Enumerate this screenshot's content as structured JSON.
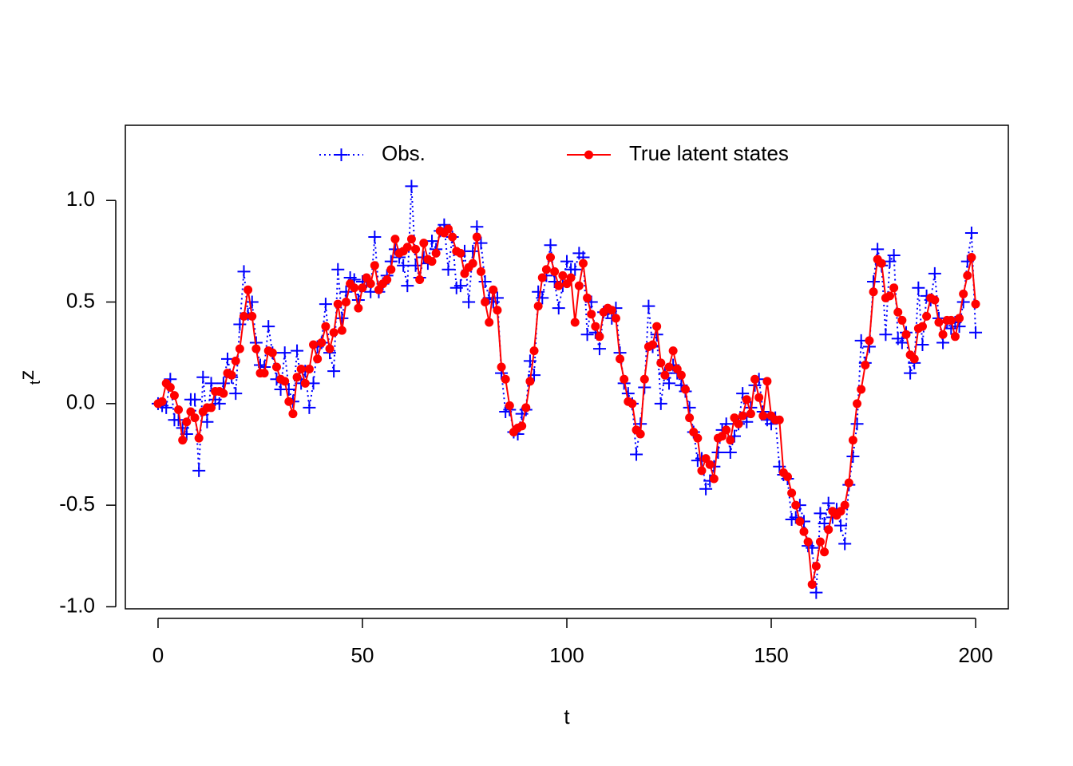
{
  "chart_data": {
    "type": "line",
    "x_label": "t",
    "y_label": "z",
    "y_label_sub": "t",
    "x": [
      0,
      1,
      2,
      3,
      4,
      5,
      6,
      7,
      8,
      9,
      10,
      11,
      12,
      13,
      14,
      15,
      16,
      17,
      18,
      19,
      20,
      21,
      22,
      23,
      24,
      25,
      26,
      27,
      28,
      29,
      30,
      31,
      32,
      33,
      34,
      35,
      36,
      37,
      38,
      39,
      40,
      41,
      42,
      43,
      44,
      45,
      46,
      47,
      48,
      49,
      50,
      51,
      52,
      53,
      54,
      55,
      56,
      57,
      58,
      59,
      60,
      61,
      62,
      63,
      64,
      65,
      66,
      67,
      68,
      69,
      70,
      71,
      72,
      73,
      74,
      75,
      76,
      77,
      78,
      79,
      80,
      81,
      82,
      83,
      84,
      85,
      86,
      87,
      88,
      89,
      90,
      91,
      92,
      93,
      94,
      95,
      96,
      97,
      98,
      99,
      100,
      101,
      102,
      103,
      104,
      105,
      106,
      107,
      108,
      109,
      110,
      111,
      112,
      113,
      114,
      115,
      116,
      117,
      118,
      119,
      120,
      121,
      122,
      123,
      124,
      125,
      126,
      127,
      128,
      129,
      130,
      131,
      132,
      133,
      134,
      135,
      136,
      137,
      138,
      139,
      140,
      141,
      142,
      143,
      144,
      145,
      146,
      147,
      148,
      149,
      150,
      151,
      152,
      153,
      154,
      155,
      156,
      157,
      158,
      159,
      160,
      161,
      162,
      163,
      164,
      165,
      166,
      167,
      168,
      169,
      170,
      171,
      172,
      173,
      174,
      175,
      176,
      177,
      178,
      179,
      180,
      181,
      182,
      183,
      184,
      185,
      186,
      187,
      188,
      189,
      190,
      191,
      192,
      193,
      194,
      195,
      196,
      197,
      198,
      199,
      200
    ],
    "series": [
      {
        "name": "Obs.",
        "color": "#0000ff",
        "dash": "dotted",
        "marker": "plus",
        "values": [
          0.0,
          -0.01,
          -0.02,
          0.12,
          -0.08,
          -0.08,
          -0.12,
          -0.15,
          0.02,
          0.02,
          -0.33,
          0.13,
          -0.09,
          0.1,
          0.02,
          0.0,
          0.1,
          0.22,
          0.13,
          0.05,
          0.39,
          0.65,
          0.44,
          0.5,
          0.3,
          0.19,
          0.18,
          0.38,
          0.25,
          0.12,
          0.07,
          0.25,
          0.07,
          0.01,
          0.26,
          0.1,
          0.16,
          -0.02,
          0.1,
          0.28,
          0.3,
          0.49,
          0.25,
          0.16,
          0.66,
          0.42,
          0.55,
          0.62,
          0.61,
          0.51,
          0.6,
          0.6,
          0.55,
          0.82,
          0.55,
          0.59,
          0.63,
          0.7,
          0.76,
          0.72,
          0.68,
          0.58,
          1.07,
          0.68,
          0.62,
          0.72,
          0.69,
          0.8,
          0.76,
          0.85,
          0.88,
          0.66,
          0.82,
          0.57,
          0.58,
          0.75,
          0.5,
          0.75,
          0.87,
          0.79,
          0.6,
          0.52,
          0.5,
          0.52,
          0.15,
          -0.04,
          -0.03,
          -0.14,
          -0.15,
          -0.05,
          -0.03,
          0.21,
          0.14,
          0.55,
          0.52,
          0.63,
          0.78,
          0.6,
          0.47,
          0.58,
          0.7,
          0.66,
          0.66,
          0.74,
          0.72,
          0.34,
          0.5,
          0.35,
          0.27,
          0.45,
          0.45,
          0.42,
          0.47,
          0.25,
          0.1,
          0.05,
          0.0,
          -0.25,
          -0.1,
          0.08,
          0.48,
          0.28,
          0.34,
          0.0,
          0.15,
          0.1,
          0.19,
          0.15,
          0.09,
          0.06,
          -0.02,
          -0.14,
          -0.28,
          -0.27,
          -0.42,
          -0.38,
          -0.31,
          -0.24,
          -0.13,
          -0.1,
          -0.24,
          -0.16,
          -0.1,
          0.05,
          -0.09,
          -0.02,
          0.09,
          0.12,
          -0.04,
          -0.08,
          -0.1,
          -0.07,
          -0.31,
          -0.35,
          -0.37,
          -0.57,
          -0.56,
          -0.5,
          -0.58,
          -0.7,
          -0.71,
          -0.93,
          -0.54,
          -0.59,
          -0.49,
          -0.56,
          -0.52,
          -0.6,
          -0.69,
          -0.4,
          -0.26,
          -0.1,
          0.31,
          0.2,
          0.28,
          0.6,
          0.76,
          0.68,
          0.34,
          0.7,
          0.73,
          0.32,
          0.3,
          0.35,
          0.15,
          0.2,
          0.57,
          0.29,
          0.53,
          0.51,
          0.64,
          0.42,
          0.3,
          0.4,
          0.37,
          0.4,
          0.38,
          0.5,
          0.7,
          0.84,
          0.35
        ]
      },
      {
        "name": "True latent states",
        "color": "#ff0000",
        "dash": "solid",
        "marker": "circle",
        "values": [
          0.0,
          0.01,
          0.1,
          0.08,
          0.04,
          -0.03,
          -0.18,
          -0.09,
          -0.04,
          -0.07,
          -0.17,
          -0.04,
          -0.02,
          -0.02,
          0.06,
          0.06,
          0.05,
          0.15,
          0.14,
          0.21,
          0.27,
          0.43,
          0.56,
          0.43,
          0.27,
          0.15,
          0.15,
          0.26,
          0.25,
          0.18,
          0.12,
          0.11,
          0.01,
          -0.05,
          0.13,
          0.17,
          0.1,
          0.17,
          0.29,
          0.22,
          0.3,
          0.38,
          0.27,
          0.35,
          0.49,
          0.36,
          0.5,
          0.59,
          0.57,
          0.47,
          0.57,
          0.62,
          0.59,
          0.68,
          0.56,
          0.59,
          0.61,
          0.66,
          0.81,
          0.74,
          0.75,
          0.77,
          0.81,
          0.76,
          0.61,
          0.79,
          0.71,
          0.7,
          0.74,
          0.85,
          0.84,
          0.86,
          0.82,
          0.75,
          0.74,
          0.64,
          0.67,
          0.69,
          0.82,
          0.65,
          0.5,
          0.4,
          0.56,
          0.46,
          0.18,
          0.12,
          -0.01,
          -0.14,
          -0.12,
          -0.11,
          -0.02,
          0.11,
          0.26,
          0.48,
          0.62,
          0.66,
          0.72,
          0.65,
          0.58,
          0.63,
          0.59,
          0.62,
          0.4,
          0.58,
          0.69,
          0.52,
          0.44,
          0.38,
          0.33,
          0.45,
          0.47,
          0.46,
          0.42,
          0.22,
          0.12,
          0.01,
          0.0,
          -0.13,
          -0.15,
          0.12,
          0.28,
          0.29,
          0.38,
          0.2,
          0.14,
          0.18,
          0.26,
          0.17,
          0.14,
          0.07,
          -0.07,
          -0.14,
          -0.17,
          -0.33,
          -0.27,
          -0.3,
          -0.37,
          -0.17,
          -0.16,
          -0.13,
          -0.18,
          -0.07,
          -0.1,
          -0.06,
          0.02,
          -0.05,
          0.12,
          0.03,
          -0.06,
          0.11,
          -0.06,
          -0.08,
          -0.08,
          -0.34,
          -0.36,
          -0.44,
          -0.5,
          -0.58,
          -0.63,
          -0.68,
          -0.89,
          -0.8,
          -0.68,
          -0.73,
          -0.62,
          -0.53,
          -0.55,
          -0.53,
          -0.5,
          -0.39,
          -0.18,
          0.0,
          0.07,
          0.19,
          0.31,
          0.55,
          0.71,
          0.69,
          0.52,
          0.53,
          0.57,
          0.45,
          0.41,
          0.34,
          0.24,
          0.22,
          0.37,
          0.38,
          0.43,
          0.52,
          0.51,
          0.4,
          0.34,
          0.41,
          0.41,
          0.33,
          0.42,
          0.54,
          0.63,
          0.72,
          0.49
        ]
      }
    ],
    "xlim": [
      -8,
      208
    ],
    "xticks": [
      0,
      50,
      100,
      150,
      200
    ],
    "ylim": [
      -1.01,
      1.37
    ],
    "yticks": [
      {
        "value": -1.0,
        "label": "-1.0"
      },
      {
        "value": -0.5,
        "label": "-0.5"
      },
      {
        "value": 0.0,
        "label": "0.0"
      },
      {
        "value": 0.5,
        "label": "0.5"
      },
      {
        "value": 1.0,
        "label": "1.0"
      }
    ],
    "legend": "top"
  }
}
